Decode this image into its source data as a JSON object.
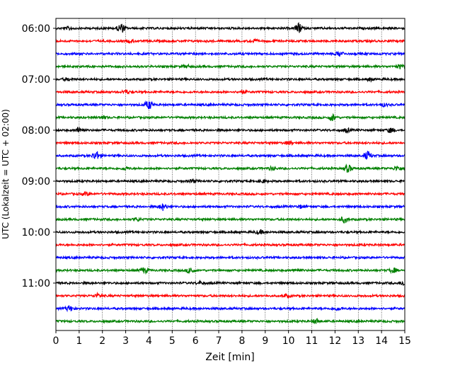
{
  "chart_data": {
    "type": "line",
    "title": "",
    "xlabel": "Zeit  [min]",
    "ylabel": "UTC (Lokalzeit = UTC + 02:00)",
    "xlim": [
      0,
      15
    ],
    "x_ticks": [
      0,
      1,
      2,
      3,
      4,
      5,
      6,
      7,
      8,
      9,
      10,
      11,
      12,
      13,
      14,
      15
    ],
    "x_tick_labels": [
      "0",
      "1",
      "2",
      "3",
      "4",
      "5",
      "6",
      "7",
      "8",
      "9",
      "10",
      "11",
      "12",
      "13",
      "14",
      "15"
    ],
    "y_tick_labels": [
      "06:00",
      "07:00",
      "08:00",
      "09:00",
      "10:00",
      "11:00"
    ],
    "grid": "vertical dotted",
    "colors": [
      "#000000",
      "#ff0000",
      "#0000ff",
      "#008000"
    ],
    "traces": [
      {
        "start": "06:00",
        "color": "#000000",
        "events": [
          [
            0.6,
            0.3
          ],
          [
            2.8,
            1.0
          ],
          [
            10.45,
            1.0
          ]
        ]
      },
      {
        "start": "06:15",
        "color": "#ff0000",
        "events": [
          [
            3.2,
            0.3
          ],
          [
            8.5,
            0.3
          ]
        ]
      },
      {
        "start": "06:30",
        "color": "#0000ff",
        "events": [
          [
            12.2,
            0.5
          ]
        ]
      },
      {
        "start": "06:45",
        "color": "#008000",
        "events": [
          [
            5.6,
            0.3
          ],
          [
            14.8,
            0.4
          ]
        ]
      },
      {
        "start": "07:00",
        "color": "#000000",
        "events": [
          [
            0.5,
            0.3
          ],
          [
            13.5,
            0.3
          ]
        ]
      },
      {
        "start": "07:15",
        "color": "#ff0000",
        "events": [
          [
            3.0,
            0.4
          ],
          [
            8.0,
            0.3
          ]
        ]
      },
      {
        "start": "07:30",
        "color": "#0000ff",
        "events": [
          [
            4.0,
            0.9
          ],
          [
            14.1,
            0.3
          ]
        ]
      },
      {
        "start": "07:45",
        "color": "#008000",
        "events": [
          [
            2.0,
            0.3
          ],
          [
            11.9,
            0.7
          ]
        ]
      },
      {
        "start": "08:00",
        "color": "#000000",
        "events": [
          [
            1.0,
            0.6
          ],
          [
            12.5,
            0.4
          ],
          [
            14.4,
            0.5
          ]
        ]
      },
      {
        "start": "08:15",
        "color": "#ff0000",
        "events": [
          [
            10.0,
            0.3
          ]
        ]
      },
      {
        "start": "08:30",
        "color": "#0000ff",
        "events": [
          [
            1.75,
            1.0
          ],
          [
            13.4,
            0.9
          ]
        ]
      },
      {
        "start": "08:45",
        "color": "#008000",
        "events": [
          [
            3.0,
            0.3
          ],
          [
            9.3,
            0.3
          ],
          [
            12.55,
            0.8
          ],
          [
            14.7,
            0.5
          ]
        ]
      },
      {
        "start": "09:00",
        "color": "#000000",
        "events": [
          [
            5.9,
            0.3
          ],
          [
            8.9,
            0.3
          ]
        ]
      },
      {
        "start": "09:15",
        "color": "#ff0000",
        "events": [
          [
            1.3,
            0.3
          ]
        ]
      },
      {
        "start": "09:30",
        "color": "#0000ff",
        "events": [
          [
            4.6,
            0.7
          ],
          [
            10.5,
            0.3
          ]
        ]
      },
      {
        "start": "09:45",
        "color": "#008000",
        "events": [
          [
            3.5,
            0.3
          ],
          [
            12.4,
            0.6
          ]
        ]
      },
      {
        "start": "10:00",
        "color": "#000000",
        "events": [
          [
            8.75,
            0.4
          ]
        ]
      },
      {
        "start": "10:15",
        "color": "#ff0000",
        "events": []
      },
      {
        "start": "10:30",
        "color": "#0000ff",
        "events": []
      },
      {
        "start": "10:45",
        "color": "#008000",
        "events": [
          [
            3.8,
            0.6
          ],
          [
            5.8,
            0.7
          ],
          [
            10.4,
            0.3
          ],
          [
            14.5,
            0.5
          ]
        ]
      },
      {
        "start": "11:00",
        "color": "#000000",
        "events": [
          [
            6.2,
            0.3
          ],
          [
            14.95,
            0.5
          ]
        ]
      },
      {
        "start": "11:15",
        "color": "#ff0000",
        "events": [
          [
            1.8,
            0.4
          ],
          [
            9.9,
            0.3
          ]
        ]
      },
      {
        "start": "11:30",
        "color": "#0000ff",
        "events": [
          [
            0.6,
            0.6
          ],
          [
            12.1,
            0.3
          ]
        ]
      },
      {
        "start": "11:45",
        "color": "#008000",
        "events": [
          [
            11.2,
            0.5
          ]
        ]
      }
    ]
  }
}
